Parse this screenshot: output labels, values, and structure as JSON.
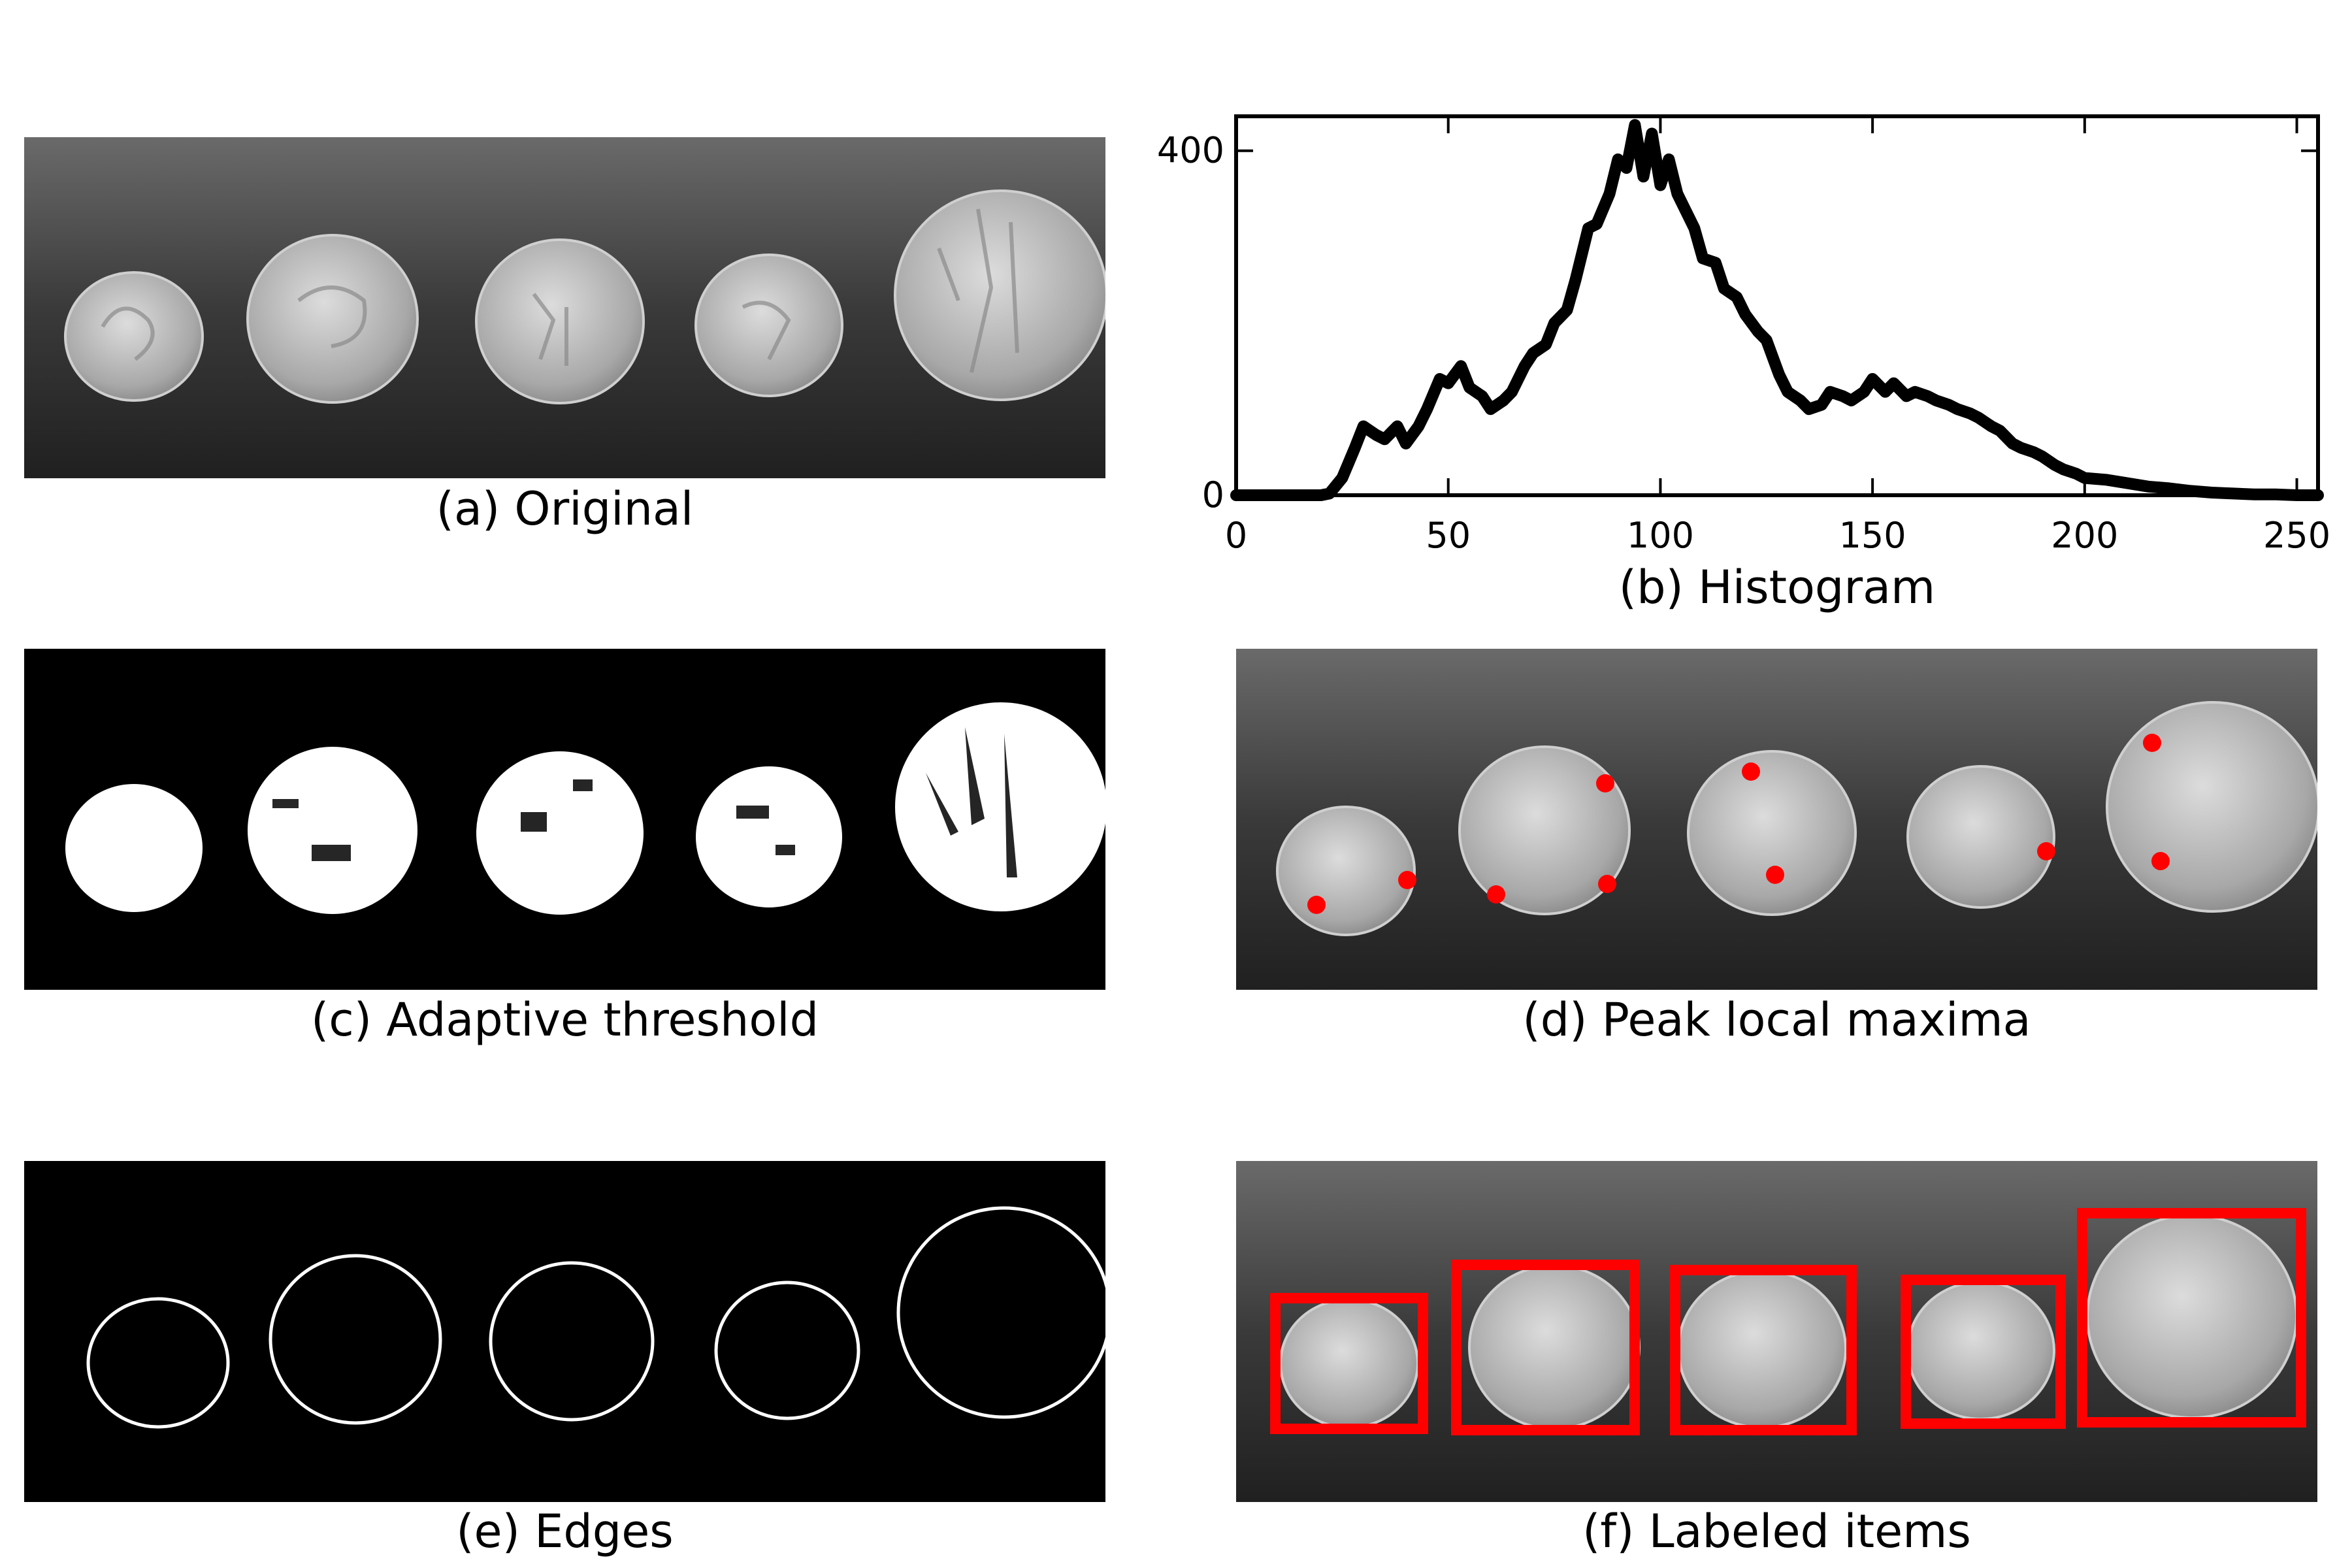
{
  "panels": {
    "a": {
      "caption": "(a) Original"
    },
    "b": {
      "caption": "(b) Histogram"
    },
    "c": {
      "caption": "(c) Adaptive threshold"
    },
    "d": {
      "caption": "(d) Peak local maxima"
    },
    "e": {
      "caption": "(e) Edges"
    },
    "f": {
      "caption": "(f) Labeled items"
    }
  },
  "colors": {
    "marker": "#ff0000",
    "box": "#ff0000"
  },
  "chart_data": {
    "type": "line",
    "title": "",
    "xlabel": "",
    "ylabel": "",
    "xlim": [
      0,
      255
    ],
    "ylim": [
      0,
      440
    ],
    "xticks": [
      0,
      50,
      100,
      150,
      200,
      250
    ],
    "yticks": [
      0,
      400
    ],
    "grid": false,
    "x": [
      0,
      10,
      20,
      22,
      25,
      28,
      30,
      33,
      35,
      38,
      40,
      43,
      45,
      48,
      50,
      53,
      55,
      58,
      60,
      63,
      65,
      68,
      70,
      73,
      75,
      78,
      80,
      83,
      85,
      88,
      90,
      92,
      94,
      96,
      98,
      100,
      102,
      104,
      106,
      108,
      110,
      113,
      115,
      118,
      120,
      123,
      125,
      128,
      130,
      133,
      135,
      138,
      140,
      143,
      145,
      148,
      150,
      153,
      155,
      158,
      160,
      163,
      165,
      168,
      170,
      173,
      175,
      178,
      180,
      183,
      185,
      188,
      190,
      193,
      195,
      198,
      200,
      205,
      210,
      215,
      220,
      225,
      230,
      235,
      240,
      245,
      250,
      255
    ],
    "y": [
      0,
      0,
      0,
      2,
      20,
      55,
      80,
      70,
      65,
      80,
      60,
      80,
      100,
      135,
      130,
      150,
      125,
      115,
      100,
      110,
      120,
      150,
      165,
      175,
      200,
      215,
      250,
      310,
      315,
      350,
      390,
      380,
      430,
      370,
      420,
      360,
      390,
      350,
      330,
      310,
      275,
      270,
      240,
      230,
      210,
      190,
      180,
      140,
      120,
      110,
      100,
      105,
      120,
      115,
      110,
      120,
      135,
      120,
      130,
      115,
      120,
      115,
      110,
      105,
      100,
      95,
      90,
      80,
      75,
      60,
      55,
      50,
      45,
      35,
      30,
      25,
      20,
      18,
      14,
      10,
      8,
      5,
      3,
      2,
      1,
      1,
      0,
      0
    ]
  }
}
